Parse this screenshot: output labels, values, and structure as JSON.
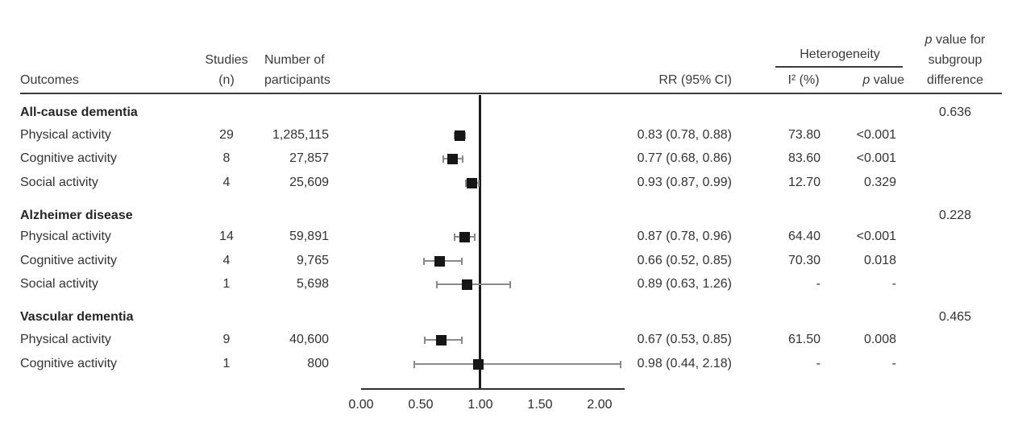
{
  "header": {
    "outcomes": "Outcomes",
    "studies_line1": "Studies",
    "studies_line2": "(n)",
    "participants_line1": "Number of",
    "participants_line2": "participants",
    "rr": "RR (95% CI)",
    "heterogeneity": "Heterogeneity",
    "i2": "I² (%)",
    "p_italic": "p",
    "p_rest": " value",
    "subgroup_p_italic": "p",
    "subgroup_line1_rest": " value for",
    "subgroup_line2": "subgroup",
    "subgroup_line3": "difference"
  },
  "rows": [
    {
      "type": "group",
      "label": "All-cause dementia",
      "subgroup_p": "0.636"
    },
    {
      "type": "item",
      "label": "Physical activity",
      "studies": "29",
      "participants": "1,285,115",
      "rr": "0.83 (0.78, 0.88)",
      "i2": "73.80",
      "p": "<0.001",
      "est": 0.83,
      "lo": 0.78,
      "hi": 0.88
    },
    {
      "type": "item",
      "label": "Cognitive activity",
      "studies": "8",
      "participants": "27,857",
      "rr": "0.77 (0.68, 0.86)",
      "i2": "83.60",
      "p": "<0.001",
      "est": 0.77,
      "lo": 0.68,
      "hi": 0.86
    },
    {
      "type": "item",
      "label": "Social activity",
      "studies": "4",
      "participants": "25,609",
      "rr": "0.93 (0.87, 0.99)",
      "i2": "12.70",
      "p": "0.329",
      "est": 0.93,
      "lo": 0.87,
      "hi": 0.99
    },
    {
      "type": "group",
      "label": "Alzheimer disease",
      "subgroup_p": "0.228"
    },
    {
      "type": "item",
      "label": "Physical activity",
      "studies": "14",
      "participants": "59,891",
      "rr": "0.87 (0.78, 0.96)",
      "i2": "64.40",
      "p": "<0.001",
      "est": 0.87,
      "lo": 0.78,
      "hi": 0.96
    },
    {
      "type": "item",
      "label": "Cognitive activity",
      "studies": "4",
      "participants": "9,765",
      "rr": "0.66 (0.52, 0.85)",
      "i2": "70.30",
      "p": "0.018",
      "est": 0.66,
      "lo": 0.52,
      "hi": 0.85
    },
    {
      "type": "item",
      "label": "Social activity",
      "studies": "1",
      "participants": "5,698",
      "rr": "0.89 (0.63, 1.26)",
      "i2": "-",
      "p": "-",
      "est": 0.89,
      "lo": 0.63,
      "hi": 1.26
    },
    {
      "type": "group",
      "label": "Vascular dementia",
      "subgroup_p": "0.465"
    },
    {
      "type": "item",
      "label": "Physical activity",
      "studies": "9",
      "participants": "40,600",
      "rr": "0.67 (0.53, 0.85)",
      "i2": "61.50",
      "p": "0.008",
      "est": 0.67,
      "lo": 0.53,
      "hi": 0.85
    },
    {
      "type": "item",
      "label": "Cognitive activity",
      "studies": "1",
      "participants": "800",
      "rr": "0.98 (0.44, 2.18)",
      "i2": "-",
      "p": "-",
      "est": 0.98,
      "lo": 0.44,
      "hi": 2.18
    }
  ],
  "axis": {
    "tick_labels": [
      "0.00",
      "0.50",
      "1.00",
      "1.50",
      "2.00"
    ],
    "tick_values": [
      0,
      0.5,
      1.0,
      1.5,
      2.0
    ],
    "reference_value": 1.0
  },
  "chart_data": {
    "type": "scatter",
    "variant": "forest-plot",
    "x_axis": {
      "ticks": [
        0.0,
        0.5,
        1.0,
        1.5,
        2.0
      ],
      "xlim": [
        0,
        2.2
      ],
      "reference_line_x": 1.0
    },
    "groups": [
      {
        "name": "All-cause dementia",
        "subgroup_difference_p": 0.636,
        "points": [
          {
            "label": "Physical activity",
            "studies_n": 29,
            "participants": 1285115,
            "rr": 0.83,
            "ci95": [
              0.78,
              0.88
            ],
            "i2_pct": 73.8,
            "p_value": "<0.001"
          },
          {
            "label": "Cognitive activity",
            "studies_n": 8,
            "participants": 27857,
            "rr": 0.77,
            "ci95": [
              0.68,
              0.86
            ],
            "i2_pct": 83.6,
            "p_value": "<0.001"
          },
          {
            "label": "Social activity",
            "studies_n": 4,
            "participants": 25609,
            "rr": 0.93,
            "ci95": [
              0.87,
              0.99
            ],
            "i2_pct": 12.7,
            "p_value": "0.329"
          }
        ]
      },
      {
        "name": "Alzheimer disease",
        "subgroup_difference_p": 0.228,
        "points": [
          {
            "label": "Physical activity",
            "studies_n": 14,
            "participants": 59891,
            "rr": 0.87,
            "ci95": [
              0.78,
              0.96
            ],
            "i2_pct": 64.4,
            "p_value": "<0.001"
          },
          {
            "label": "Cognitive activity",
            "studies_n": 4,
            "participants": 9765,
            "rr": 0.66,
            "ci95": [
              0.52,
              0.85
            ],
            "i2_pct": 70.3,
            "p_value": "0.018"
          },
          {
            "label": "Social activity",
            "studies_n": 1,
            "participants": 5698,
            "rr": 0.89,
            "ci95": [
              0.63,
              1.26
            ],
            "i2_pct": null,
            "p_value": null
          }
        ]
      },
      {
        "name": "Vascular dementia",
        "subgroup_difference_p": 0.465,
        "points": [
          {
            "label": "Physical activity",
            "studies_n": 9,
            "participants": 40600,
            "rr": 0.67,
            "ci95": [
              0.53,
              0.85
            ],
            "i2_pct": 61.5,
            "p_value": "0.008"
          },
          {
            "label": "Cognitive activity",
            "studies_n": 1,
            "participants": 800,
            "rr": 0.98,
            "ci95": [
              0.44,
              2.18
            ],
            "i2_pct": null,
            "p_value": null
          }
        ]
      }
    ]
  }
}
